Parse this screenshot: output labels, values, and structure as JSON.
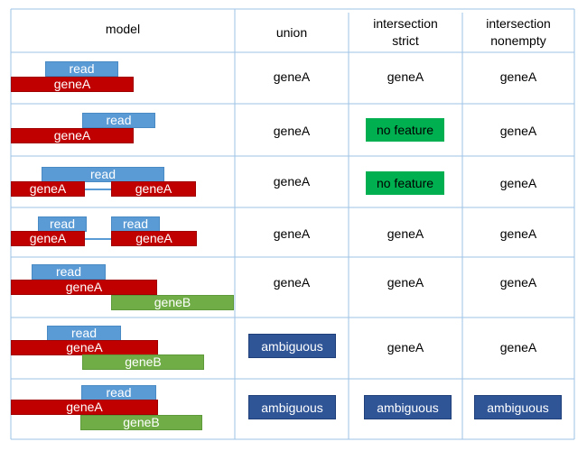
{
  "headers": {
    "model": "model",
    "union": "union",
    "strict": [
      "intersection",
      "strict"
    ],
    "nonempty": [
      "intersection",
      "nonempty"
    ]
  },
  "rows": [
    {
      "model": {
        "reads": [
          "read"
        ],
        "genes": [
          {
            "label": "geneA",
            "type": "geneA"
          }
        ]
      },
      "union": {
        "label": "geneA",
        "style": "plain"
      },
      "strict": {
        "label": "geneA",
        "style": "plain"
      },
      "nonempty": {
        "label": "geneA",
        "style": "plain"
      }
    },
    {
      "model": {
        "reads": [
          "read"
        ],
        "genes": [
          {
            "label": "geneA",
            "type": "geneA"
          }
        ]
      },
      "union": {
        "label": "geneA",
        "style": "plain"
      },
      "strict": {
        "label": "no feature",
        "style": "green"
      },
      "nonempty": {
        "label": "geneA",
        "style": "plain"
      }
    },
    {
      "model": {
        "reads": [
          "read"
        ],
        "genes": [
          {
            "label": "geneA",
            "type": "geneA"
          },
          {
            "label": "geneA",
            "type": "geneA"
          }
        ]
      },
      "union": {
        "label": "geneA",
        "style": "plain"
      },
      "strict": {
        "label": "no feature",
        "style": "green"
      },
      "nonempty": {
        "label": "geneA",
        "style": "plain"
      }
    },
    {
      "model": {
        "reads": [
          "read",
          "read"
        ],
        "genes": [
          {
            "label": "geneA",
            "type": "geneA"
          },
          {
            "label": "geneA",
            "type": "geneA"
          }
        ]
      },
      "union": {
        "label": "geneA",
        "style": "plain"
      },
      "strict": {
        "label": "geneA",
        "style": "plain"
      },
      "nonempty": {
        "label": "geneA",
        "style": "plain"
      }
    },
    {
      "model": {
        "reads": [
          "read"
        ],
        "genes": [
          {
            "label": "geneA",
            "type": "geneA"
          },
          {
            "label": "geneB",
            "type": "geneB"
          }
        ]
      },
      "union": {
        "label": "geneA",
        "style": "plain"
      },
      "strict": {
        "label": "geneA",
        "style": "plain"
      },
      "nonempty": {
        "label": "geneA",
        "style": "plain"
      }
    },
    {
      "model": {
        "reads": [
          "read"
        ],
        "genes": [
          {
            "label": "geneA",
            "type": "geneA"
          },
          {
            "label": "geneB",
            "type": "geneB"
          }
        ]
      },
      "union": {
        "label": "ambiguous",
        "style": "navy"
      },
      "strict": {
        "label": "geneA",
        "style": "plain"
      },
      "nonempty": {
        "label": "geneA",
        "style": "plain"
      }
    },
    {
      "model": {
        "reads": [
          "read"
        ],
        "genes": [
          {
            "label": "geneA",
            "type": "geneA"
          },
          {
            "label": "geneB",
            "type": "geneB"
          }
        ]
      },
      "union": {
        "label": "ambiguous",
        "style": "navy"
      },
      "strict": {
        "label": "ambiguous",
        "style": "navy"
      },
      "nonempty": {
        "label": "ambiguous",
        "style": "navy"
      }
    }
  ],
  "colors": {
    "read": "#5b9bd5",
    "geneA": "#c00000",
    "geneB": "#70ad47",
    "no_feature": "#00b050",
    "ambiguous": "#2f5597",
    "grid": "#9dc3e6"
  }
}
